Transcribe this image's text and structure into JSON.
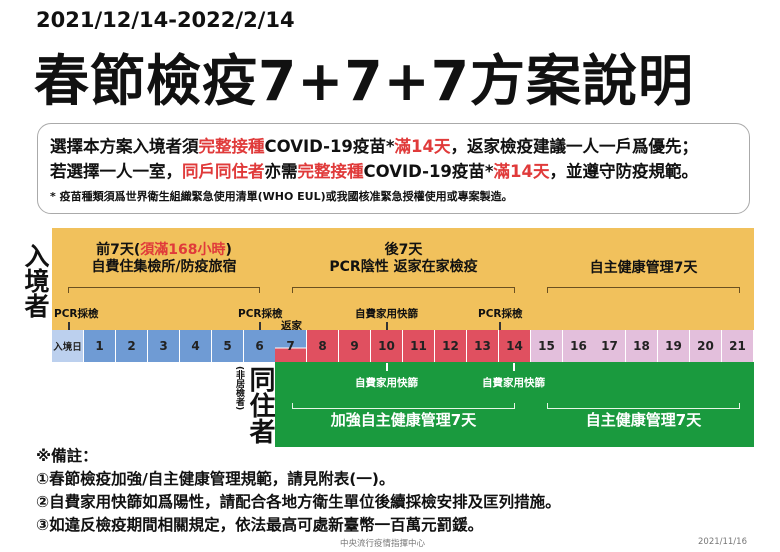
{
  "header": {
    "date_range": "2021/12/14-2022/2/14",
    "title": "春節檢疫7+7+7方案說明"
  },
  "info_box": {
    "line1": [
      {
        "t": "選擇本方案入境者須",
        "red": false
      },
      {
        "t": "完整接種",
        "red": true
      },
      {
        "t": "COVID-19疫苗*",
        "red": false
      },
      {
        "t": "滿14天",
        "red": true
      },
      {
        "t": "，返家檢疫建議一人一戶爲優先；",
        "red": false
      }
    ],
    "line2": [
      {
        "t": "若選擇一人一室，",
        "red": false
      },
      {
        "t": "同戶同住者",
        "red": true
      },
      {
        "t": "亦需",
        "red": false
      },
      {
        "t": "完整接種",
        "red": true
      },
      {
        "t": "COVID-19疫苗*",
        "red": false
      },
      {
        "t": "滿14天",
        "red": true
      },
      {
        "t": "，並遵守防疫規範。",
        "red": false
      }
    ],
    "footnote": "* 疫苗種類須爲世界衛生組織緊急使用清單(WHO EUL)或我國核准緊急授權使用或專案製造。"
  },
  "timeline": {
    "entrant_label": "入境者",
    "cohabitant_label": "同住者",
    "cohabitant_sub": "(非居檢者)",
    "phase1_a": "前7天(",
    "phase1_red": "須滿168小時",
    "phase1_b": ")",
    "phase1_line2": "自費住集檢所/防疫旅宿",
    "phase2_line1": "後7天",
    "phase2_line2": "PCR陰性 返家在家檢疫",
    "phase3": "自主健康管理7天",
    "pcr1": "PCR採檢",
    "pcr2": "PCR採檢",
    "return_home": "返家",
    "rapid1": "自費家用快篩",
    "pcr3": "PCR採檢",
    "co_rapid1": "自費家用快篩",
    "co_rapid2": "自費家用快篩",
    "co_phase1": "加強自主健康管理7天",
    "co_phase2": "自主健康管理7天",
    "entry_day": "入境日",
    "days": [
      "1",
      "2",
      "3",
      "4",
      "5",
      "6",
      "7",
      "8",
      "9",
      "10",
      "11",
      "12",
      "13",
      "14",
      "15",
      "16",
      "17",
      "18",
      "19",
      "20",
      "21"
    ],
    "colors": {
      "yellow": "#f1c15c",
      "facility": "#6f9bd4",
      "entry_day": "#bcd0ee",
      "home_quarantine": "#e05060",
      "self_health": "#e3bfdc",
      "cohabitant": "#1a9a3e",
      "highlight_text": "#e03a3a"
    }
  },
  "notes": {
    "heading": "※備註：",
    "items": [
      "①春節檢疫加強/自主健康管理規範，請見附表(一)。",
      "②自費家用快篩如爲陽性，請配合各地方衛生單位後續採檢安排及匡列措施。",
      "③如違反檢疫期間相關規定，依法最高可處新臺幣一百萬元罰鍰。"
    ]
  },
  "footer": {
    "org": "中央流行疫情指揮中心",
    "date": "2021/11/16"
  }
}
